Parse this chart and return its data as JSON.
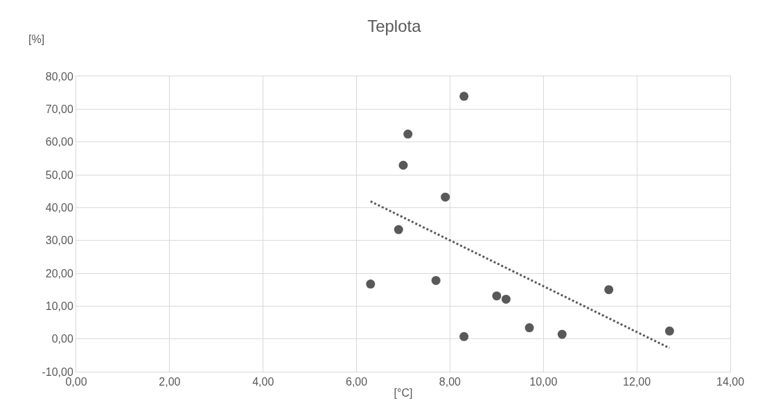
{
  "chart_data": {
    "type": "scatter",
    "title": "Teplota",
    "xlabel": "[°C]",
    "ylabel": "[%]",
    "series": [
      {
        "color": "#595959",
        "marker": "circle",
        "x": [
          6.3,
          6.9,
          7.0,
          7.1,
          7.7,
          7.9,
          8.3,
          8.3,
          9.0,
          9.2,
          9.7,
          10.4,
          11.4,
          12.7
        ],
        "values": [
          16.7,
          33.3,
          52.9,
          62.4,
          17.8,
          43.2,
          73.9,
          0.7,
          13.1,
          12.1,
          3.4,
          1.4,
          15.0,
          2.4
        ]
      },
      {
        "type": "line",
        "color": "#595959",
        "line_style": "dotted",
        "marker": "none",
        "x": [
          6.3,
          12.7
        ],
        "values": [
          41.9,
          -2.8
        ]
      }
    ],
    "xlim": [
      0,
      14
    ],
    "ylim": [
      -10,
      80
    ],
    "xticks": [
      {
        "value": 0,
        "label": "0,00"
      },
      {
        "value": 2,
        "label": "2,00"
      },
      {
        "value": 4,
        "label": "4,00"
      },
      {
        "value": 6,
        "label": "6,00"
      },
      {
        "value": 8,
        "label": "8,00"
      },
      {
        "value": 10,
        "label": "10,00"
      },
      {
        "value": 12,
        "label": "12,00"
      },
      {
        "value": 14,
        "label": "14,00"
      }
    ],
    "yticks": [
      {
        "value": -10,
        "label": "-10,00"
      },
      {
        "value": 0,
        "label": "0,00"
      },
      {
        "value": 10,
        "label": "10,00"
      },
      {
        "value": 20,
        "label": "20,00"
      },
      {
        "value": 30,
        "label": "30,00"
      },
      {
        "value": 40,
        "label": "40,00"
      },
      {
        "value": 50,
        "label": "50,00"
      },
      {
        "value": 60,
        "label": "60,00"
      },
      {
        "value": 70,
        "label": "70,00"
      },
      {
        "value": 80,
        "label": "80,00"
      }
    ],
    "grid": true
  }
}
